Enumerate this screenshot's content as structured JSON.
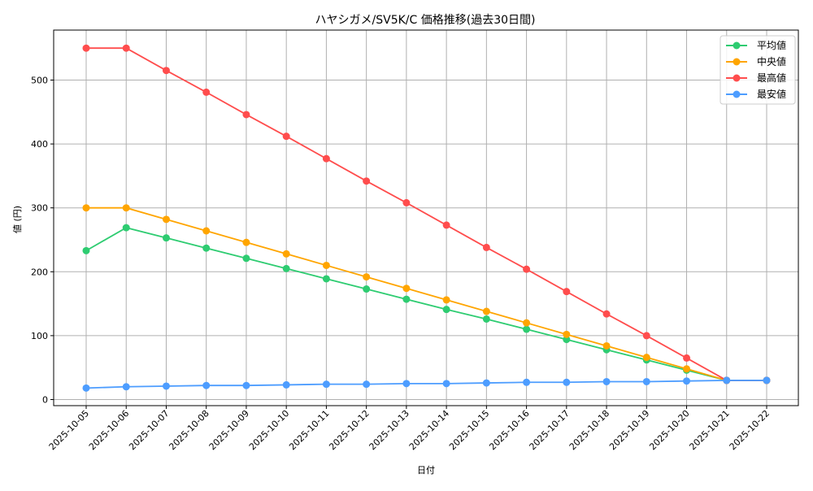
{
  "chart_data": {
    "type": "line",
    "title": "ハヤシガメ/SV5K/C 価格推移(過去30日間)",
    "xlabel": "日付",
    "ylabel": "値 (円)",
    "ylim": [
      -7,
      575
    ],
    "yticks": [
      0,
      100,
      200,
      300,
      400,
      500
    ],
    "grid": true,
    "legend_position": "upper right",
    "categories": [
      "2025-10-05",
      "2025-10-06",
      "2025-10-07",
      "2025-10-08",
      "2025-10-09",
      "2025-10-10",
      "2025-10-11",
      "2025-10-12",
      "2025-10-13",
      "2025-10-14",
      "2025-10-15",
      "2025-10-16",
      "2025-10-17",
      "2025-10-18",
      "2025-10-19",
      "2025-10-20",
      "2025-10-21",
      "2025-10-22"
    ],
    "series": [
      {
        "name": "平均値",
        "color": "#2ecc71",
        "values": [
          233,
          269,
          253,
          237,
          221,
          205,
          189,
          173,
          157,
          141,
          126,
          110,
          94,
          78,
          62,
          46,
          30,
          30
        ]
      },
      {
        "name": "中央値",
        "color": "#ffa500",
        "values": [
          300,
          300,
          282,
          264,
          246,
          228,
          210,
          192,
          174,
          156,
          138,
          120,
          102,
          84,
          66,
          48,
          30,
          30
        ]
      },
      {
        "name": "最高値",
        "color": "#ff4d4d",
        "values": [
          550,
          550,
          515,
          481,
          446,
          412,
          377,
          342,
          308,
          273,
          238,
          204,
          169,
          134,
          100,
          65,
          30,
          30
        ]
      },
      {
        "name": "最安値",
        "color": "#4d9dff",
        "values": [
          18,
          20,
          21,
          22,
          22,
          23,
          24,
          24,
          25,
          25,
          26,
          27,
          27,
          28,
          28,
          29,
          30,
          30
        ]
      }
    ]
  }
}
